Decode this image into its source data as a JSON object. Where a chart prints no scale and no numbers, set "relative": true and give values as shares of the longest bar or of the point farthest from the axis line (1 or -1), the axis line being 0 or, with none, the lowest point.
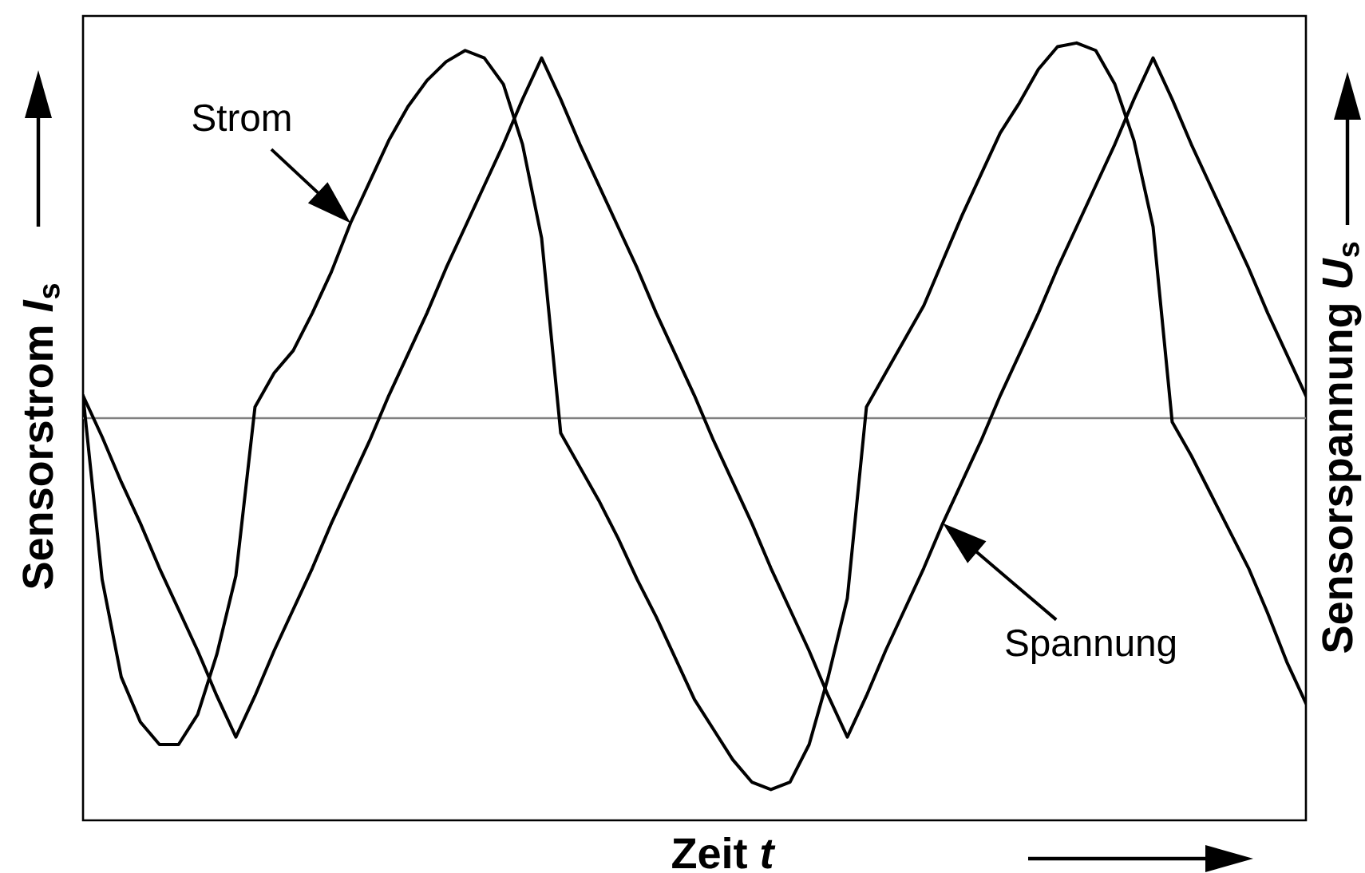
{
  "chart_data": {
    "type": "line",
    "relative": true,
    "xlabel": "Zeit *t*",
    "ylabel": "Sensorstrom *I*$_{s}$",
    "y2label": "Sensorspannung *U*$_{s}$",
    "categories": [
      null,
      null,
      null,
      null,
      null,
      null,
      null,
      null,
      null,
      null,
      null,
      null,
      null,
      null,
      null,
      null,
      null,
      null,
      null,
      null,
      null,
      null,
      null,
      null,
      null,
      null,
      null,
      null,
      null,
      null,
      null,
      null,
      null,
      null,
      null,
      null,
      null,
      null,
      null,
      null,
      null,
      null,
      null,
      null,
      null,
      null,
      null,
      null,
      null,
      null,
      null,
      null,
      null,
      null,
      null,
      null,
      null,
      null,
      null,
      null,
      null,
      null,
      null,
      null,
      null
    ],
    "series": [
      {
        "name": "Strom",
        "color": "#000000",
        "values": [
          0.06,
          -0.43,
          -0.69,
          -0.81,
          -0.87,
          -0.87,
          -0.79,
          -0.63,
          -0.42,
          0.03,
          0.12,
          0.18,
          0.28,
          0.39,
          0.52,
          0.63,
          0.74,
          0.83,
          0.9,
          0.95,
          0.98,
          0.96,
          0.89,
          0.73,
          0.48,
          -0.04,
          -0.13,
          -0.22,
          -0.32,
          -0.43,
          -0.53,
          -0.64,
          -0.75,
          -0.83,
          -0.91,
          -0.97,
          -0.99,
          -0.97,
          -0.87,
          -0.69,
          -0.48,
          0.03,
          0.12,
          0.21,
          0.3,
          0.42,
          0.54,
          0.65,
          0.76,
          0.84,
          0.93,
          0.99,
          1,
          0.98,
          0.89,
          0.74,
          0.51,
          -0.01,
          -0.1,
          -0.2,
          -0.3,
          -0.4,
          -0.52,
          -0.65,
          -0.76
        ]
      },
      {
        "name": "Spannung",
        "color": "#000000",
        "values": [
          0.06,
          -0.05,
          -0.17,
          -0.28,
          -0.4,
          -0.51,
          -0.62,
          -0.74,
          -0.85,
          -0.74,
          -0.62,
          -0.51,
          -0.4,
          -0.28,
          -0.17,
          -0.06,
          0.06,
          0.17,
          0.28,
          0.4,
          0.51,
          0.62,
          0.73,
          0.85,
          0.96,
          0.85,
          0.73,
          0.62,
          0.51,
          0.4,
          0.28,
          0.17,
          0.06,
          -0.06,
          -0.17,
          -0.28,
          -0.4,
          -0.51,
          -0.62,
          -0.74,
          -0.85,
          -0.74,
          -0.62,
          -0.51,
          -0.4,
          -0.28,
          -0.17,
          -0.06,
          0.06,
          0.17,
          0.28,
          0.4,
          0.51,
          0.62,
          0.73,
          0.85,
          0.96,
          0.85,
          0.73,
          0.62,
          0.51,
          0.4,
          0.28,
          0.17,
          0.06
        ]
      }
    ]
  }
}
